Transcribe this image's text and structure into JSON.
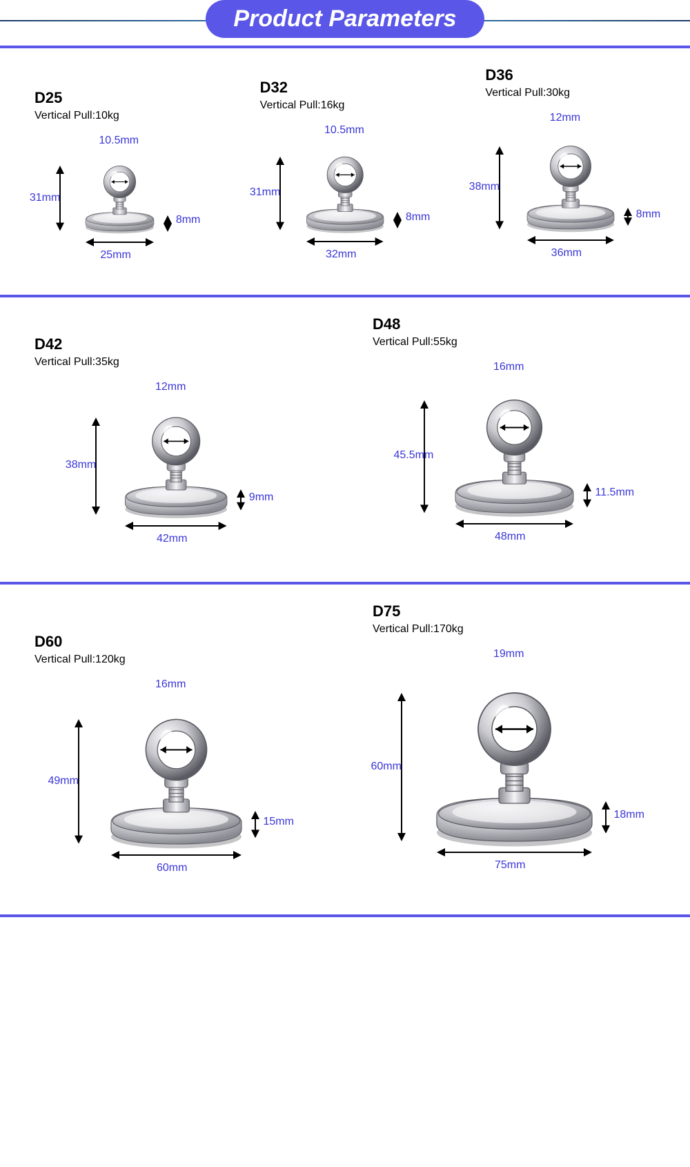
{
  "header": {
    "title": "Product Parameters"
  },
  "colors": {
    "accent": "#5a56e8",
    "dim_label": "#3a36d8",
    "text": "#000000",
    "metal_light": "#f5f5f7",
    "metal_mid": "#c8c8ce",
    "metal_dark": "#8a8a92",
    "metal_shadow": "#5a5a62"
  },
  "rows": [
    {
      "items": [
        {
          "model": "D25",
          "pull": "Vertical Pull:10kg",
          "ring_inner": "10.5mm",
          "total_h": "31mm",
          "base_w": "25mm",
          "base_h": "8mm",
          "scale": 0.55
        },
        {
          "model": "D32",
          "pull": "Vertical Pull:16kg",
          "ring_inner": "10.5mm",
          "total_h": "31mm",
          "base_w": "32mm",
          "base_h": "8mm",
          "scale": 0.62
        },
        {
          "model": "D36",
          "pull": "Vertical Pull:30kg",
          "ring_inner": "12mm",
          "total_h": "38mm",
          "base_w": "36mm",
          "base_h": "8mm",
          "scale": 0.7
        }
      ]
    },
    {
      "items": [
        {
          "model": "D42",
          "pull": "Vertical Pull:35kg",
          "ring_inner": "12mm",
          "total_h": "38mm",
          "base_w": "42mm",
          "base_h": "9mm",
          "scale": 0.82
        },
        {
          "model": "D48",
          "pull": "Vertical Pull:55kg",
          "ring_inner": "16mm",
          "total_h": "45.5mm",
          "base_w": "48mm",
          "base_h": "11.5mm",
          "scale": 0.95
        }
      ]
    },
    {
      "items": [
        {
          "model": "D60",
          "pull": "Vertical Pull:120kg",
          "ring_inner": "16mm",
          "total_h": "49mm",
          "base_w": "60mm",
          "base_h": "15mm",
          "scale": 1.05
        },
        {
          "model": "D75",
          "pull": "Vertical Pull:170kg",
          "ring_inner": "19mm",
          "total_h": "60mm",
          "base_w": "75mm",
          "base_h": "18mm",
          "scale": 1.25
        }
      ]
    }
  ]
}
